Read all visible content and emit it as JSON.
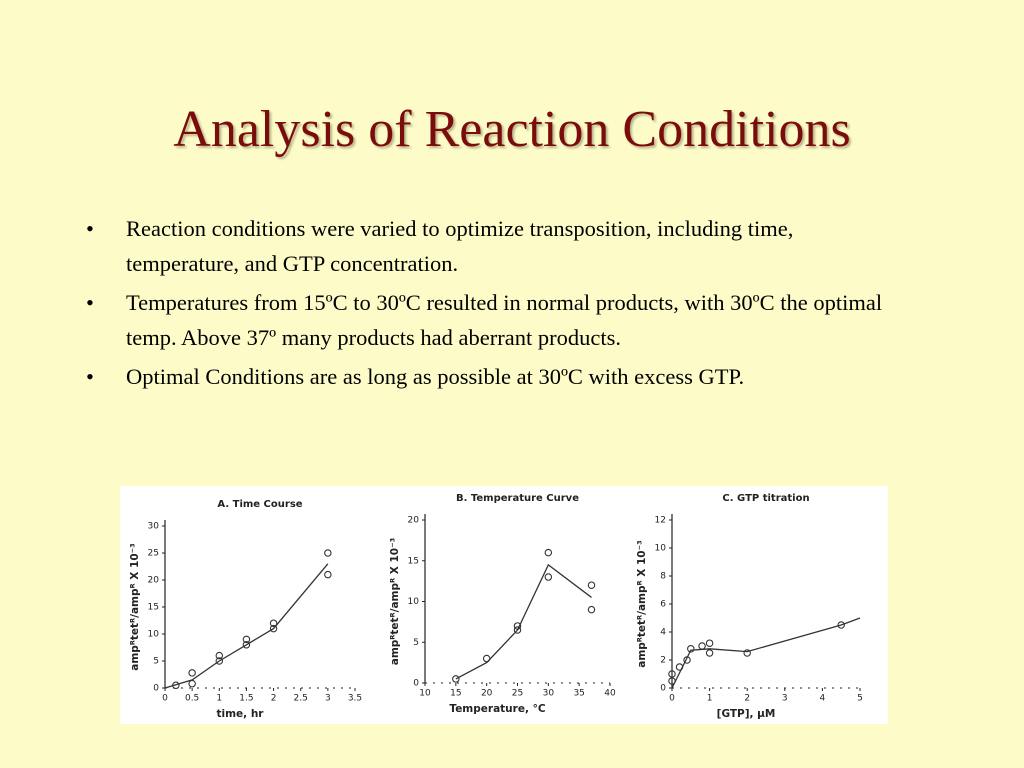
{
  "slide": {
    "title": "Analysis of Reaction Conditions",
    "bullets": [
      "Reaction conditions were varied to optimize transposition, including time, temperature, and GTP concentration.",
      "Temperatures from 15ºC to 30ºC resulted in normal products, with 30ºC the optimal temp.  Above 37º many products had aberrant products.",
      "Optimal Conditions are as long as possible at 30ºC with excess GTP."
    ]
  },
  "chart_data": [
    {
      "type": "scatter",
      "title": "A.  Time Course",
      "x_label": "time,  hr",
      "y_label": "ampᴿtetᴿ/ampᴿ X 10⁻³",
      "xlim": [
        0,
        3.5
      ],
      "xticks": [
        0,
        0.5,
        1,
        1.5,
        2,
        2.5,
        3,
        3.5
      ],
      "ylim": [
        0,
        30
      ],
      "yticks": [
        0,
        5,
        10,
        15,
        20,
        25,
        30
      ],
      "x": [
        0.2,
        0.5,
        0.5,
        1,
        1,
        1.5,
        1.5,
        2,
        2,
        3,
        3
      ],
      "values": [
        0.5,
        0.8,
        2.8,
        5,
        6,
        8,
        9,
        11,
        12,
        21,
        25
      ],
      "line_x": [
        0,
        0.5,
        1,
        1.5,
        2,
        3
      ],
      "line_values": [
        0,
        1.5,
        5,
        8,
        11,
        23
      ],
      "color": "#333333"
    },
    {
      "type": "scatter",
      "title": "B.  Temperature Curve",
      "x_label": "Temperature,  °C",
      "y_label": "ampᴿtetᴿ/ampᴿ X 10⁻³",
      "xlim": [
        10,
        40
      ],
      "xticks": [
        10,
        15,
        20,
        25,
        30,
        35,
        40
      ],
      "ylim": [
        0,
        20
      ],
      "yticks": [
        0,
        5,
        10,
        15,
        20
      ],
      "x": [
        15,
        20,
        25,
        25,
        30,
        30,
        37,
        37
      ],
      "values": [
        0.5,
        3,
        7,
        6.5,
        16,
        13,
        12,
        9
      ],
      "line_x": [
        15,
        20,
        25,
        30,
        37
      ],
      "line_values": [
        0.5,
        2.5,
        6.5,
        14.5,
        10.5
      ],
      "color": "#333333"
    },
    {
      "type": "scatter",
      "title": "C.  GTP titration",
      "x_label": "[GTP],  µM",
      "y_label": "ampᴿtetᴿ/ampᴿ X 10⁻³",
      "xlim": [
        0,
        5
      ],
      "xticks": [
        0,
        1,
        2,
        3,
        4,
        5
      ],
      "ylim": [
        0,
        12
      ],
      "yticks": [
        0,
        2,
        4,
        6,
        8,
        10,
        12
      ],
      "x": [
        0,
        0,
        0.2,
        0.4,
        0.5,
        0.8,
        1,
        1,
        2,
        4.5
      ],
      "values": [
        0.5,
        1,
        1.5,
        2,
        2.8,
        3,
        2.5,
        3.2,
        2.5,
        4.5
      ],
      "line_x": [
        0,
        0.5,
        1,
        2,
        4.5,
        5
      ],
      "line_values": [
        0,
        2.7,
        2.8,
        2.6,
        4.5,
        5
      ],
      "color": "#333333"
    }
  ]
}
